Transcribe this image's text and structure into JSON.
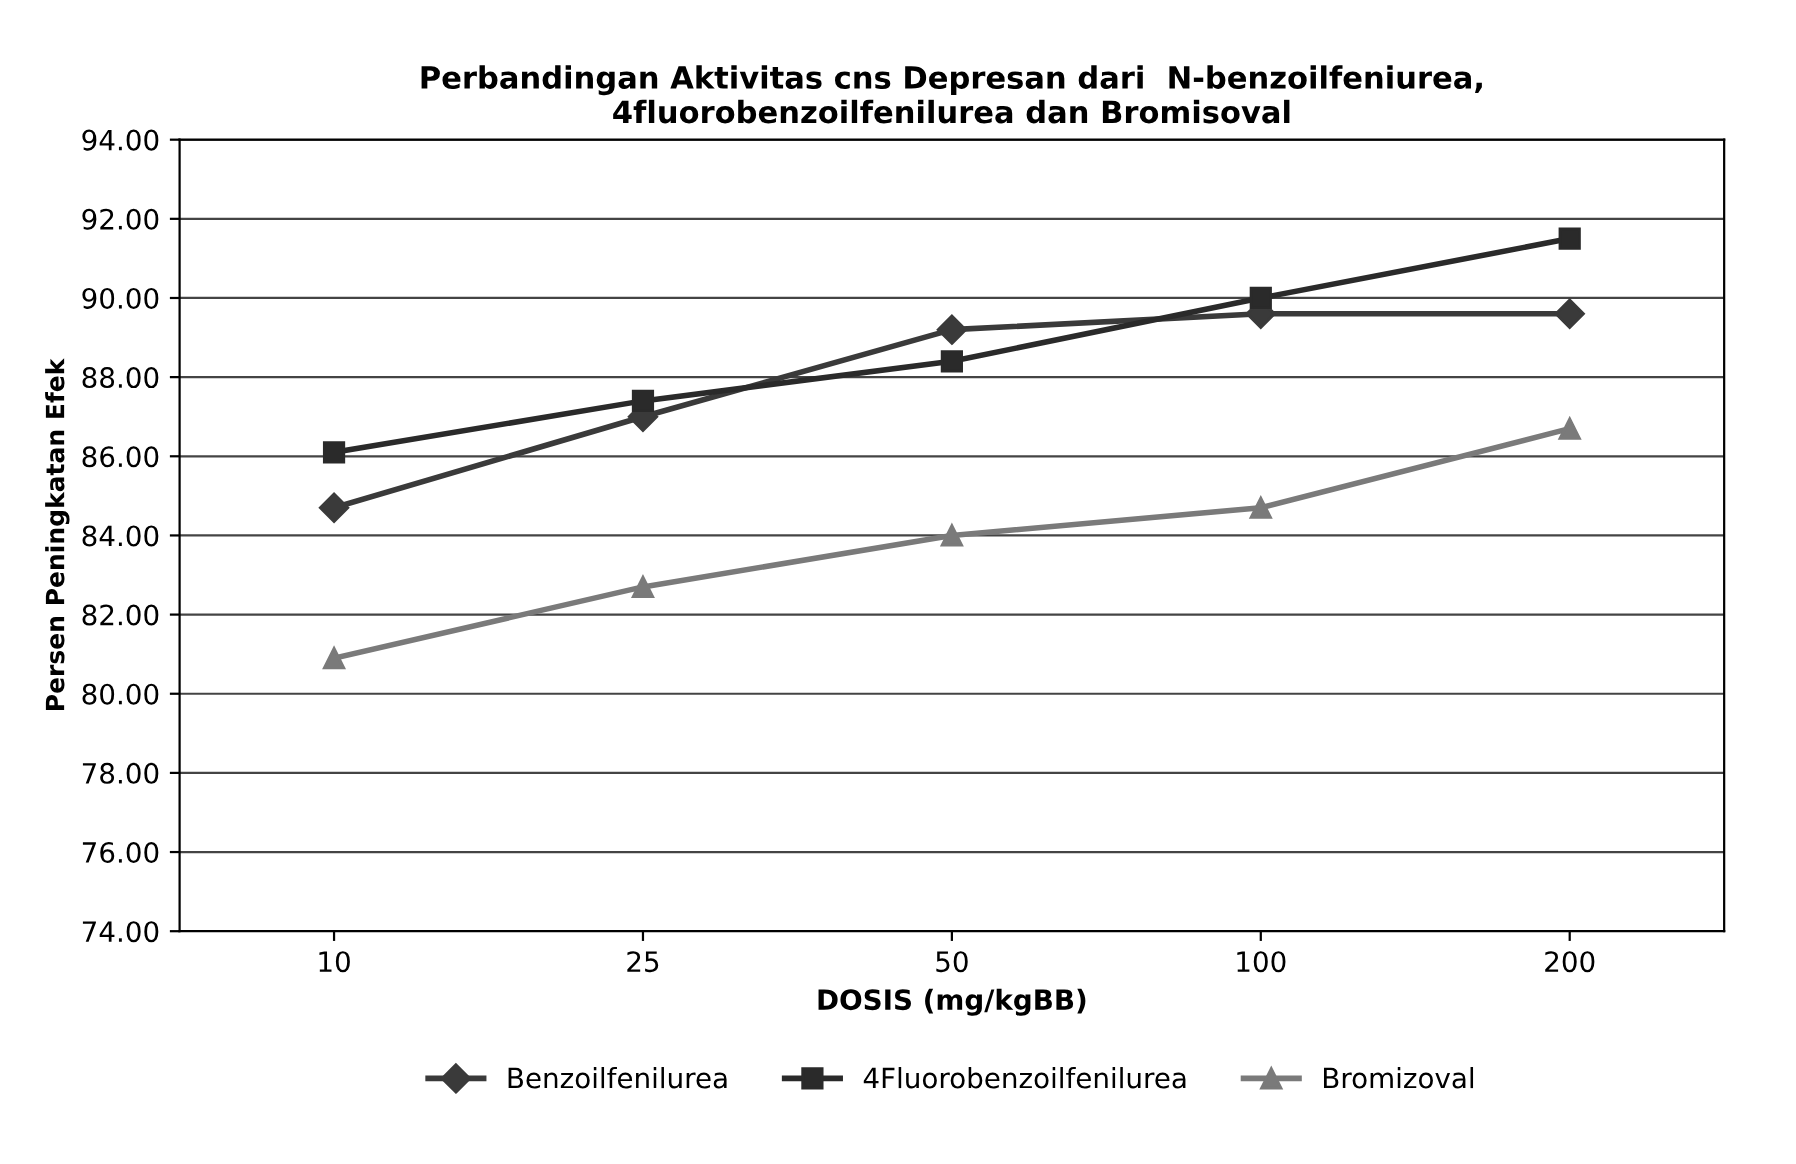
{
  "chart_data": {
    "type": "line",
    "title": "Perbandingan Aktivitas cns Depresan dari  N-benzoilfeniurea,\n4fluorobenzoilfenilurea dan Bromisoval",
    "xlabel": "DOSIS (mg/kgBB)",
    "ylabel": "Persen Peningkatan Efek",
    "categories": [
      "10",
      "25",
      "50",
      "100",
      "200"
    ],
    "series": [
      {
        "name": "Benzoilfenilurea",
        "color": "#3a3a3a",
        "marker": "diamond",
        "values": [
          84.7,
          87.0,
          89.2,
          89.6,
          89.6
        ]
      },
      {
        "name": "4Fluorobenzoilfenilurea",
        "color": "#2a2a2a",
        "marker": "square",
        "values": [
          86.1,
          87.4,
          88.4,
          90.0,
          91.5
        ]
      },
      {
        "name": "Bromizoval",
        "color": "#7a7a7a",
        "marker": "triangle",
        "values": [
          80.9,
          82.7,
          84.0,
          84.7,
          86.7
        ]
      }
    ],
    "ylim": [
      74,
      94
    ],
    "yticks": [
      {
        "value": 74,
        "label": "74.00"
      },
      {
        "value": 76,
        "label": "76.00"
      },
      {
        "value": 78,
        "label": "78.00"
      },
      {
        "value": 80,
        "label": "80.00"
      },
      {
        "value": 82,
        "label": "82.00"
      },
      {
        "value": 84,
        "label": "84.00"
      },
      {
        "value": 86,
        "label": "86.00"
      },
      {
        "value": 88,
        "label": "88.00"
      },
      {
        "value": 90,
        "label": "90.00"
      },
      {
        "value": 92,
        "label": "92.00"
      },
      {
        "value": 94,
        "label": "94.00"
      }
    ],
    "grid": "y",
    "legend": "bottom",
    "line_style": "solid"
  }
}
